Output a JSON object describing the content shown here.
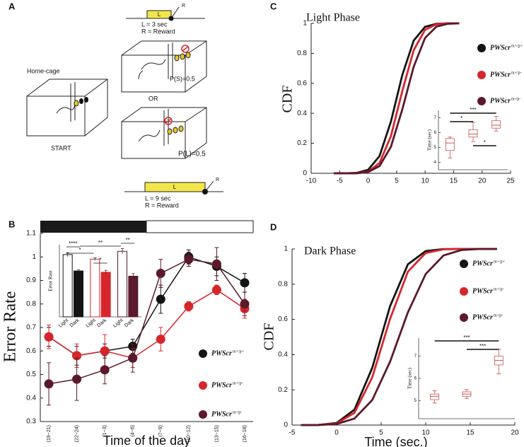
{
  "diagram": {
    "label": "A",
    "short_bar_label": "L",
    "short_bar_r": "R",
    "short_note_1": "L = 3 sec",
    "short_note_2": "R = Reward",
    "home_cage": "Home-cage",
    "start": "START",
    "p_short": "P(S)=0.5",
    "or": "OR",
    "p_long": "P(L)=0.5",
    "long_bar_label": "L",
    "long_bar_r": "R",
    "long_note_1": "L = 9 sec",
    "long_note_2": "R = Reward"
  },
  "chart_data": [
    {
      "panel": "B",
      "type": "line",
      "y_label": "Error Rate",
      "x_label": "Time of the day",
      "categories": [
        "(19~21)",
        "(22~24)",
        "(1~3)",
        "(4~6)",
        "(7~9)",
        "(10~12)",
        "(13~15)",
        "(16~18)"
      ],
      "ylim": [
        0.3,
        1.1
      ],
      "yticks": [
        0.3,
        0.4,
        0.5,
        0.6,
        0.7,
        0.8,
        0.9,
        1.0,
        1.1
      ],
      "series": [
        {
          "name": "PWScr",
          "sup": "m+/p+",
          "color": "#141414",
          "values": [
            0.66,
            0.58,
            0.6,
            0.62,
            0.82,
            1.0,
            0.96,
            0.89
          ],
          "errors": [
            0.04,
            0.04,
            0.03,
            0.03,
            0.06,
            0.03,
            0.04,
            0.04
          ]
        },
        {
          "name": "PWScr",
          "sup": "m+/p-",
          "color": "#d7262b",
          "values": [
            0.66,
            0.58,
            0.6,
            0.57,
            0.65,
            0.79,
            0.86,
            0.78
          ],
          "errors": [
            0.05,
            0.05,
            0.07,
            0.04,
            0.05,
            0.02,
            0.02,
            0.04
          ]
        },
        {
          "name": "PWScr",
          "sup": "m-/p-",
          "color": "#5a1a2c",
          "values": [
            0.46,
            0.48,
            0.52,
            0.57,
            0.93,
            0.99,
            0.97,
            0.8
          ],
          "errors": [
            0.09,
            0.09,
            0.06,
            0.06,
            0.06,
            0.03,
            0.07,
            0.05
          ]
        }
      ],
      "inset": {
        "type": "bar",
        "y_label": "Error Rate",
        "ylim": [
          0,
          1.1
        ],
        "categories": [
          "Light",
          "Dark",
          "Light",
          "Dark",
          "Light",
          "Dark"
        ],
        "values": [
          0.95,
          0.7,
          0.88,
          0.68,
          1.0,
          0.62
        ],
        "errors": [
          0.03,
          0.02,
          0.02,
          0.03,
          0.04,
          0.04
        ],
        "colors": [
          "#141414",
          "#141414",
          "#d7262b",
          "#d7262b",
          "#5a1a2c",
          "#5a1a2c"
        ],
        "annotations": [
          "****",
          "*",
          "*",
          "**",
          "**"
        ]
      }
    },
    {
      "panel": "C",
      "type": "line",
      "title": "Light Phase",
      "y_label": "CDF",
      "xlim": [
        -10,
        25
      ],
      "xticks": [
        -10,
        -5,
        0,
        5,
        10,
        15,
        20,
        25
      ],
      "ylim": [
        0,
        1
      ],
      "yticks": [
        0,
        0.2,
        0.4,
        0.6,
        0.8,
        1
      ],
      "x": [
        -6,
        -4,
        -2,
        0,
        2,
        4,
        6,
        8,
        10,
        12,
        14,
        16
      ],
      "series": [
        {
          "name": "PWScr",
          "sup": "m+/p+",
          "color": "#141414",
          "values": [
            0,
            0,
            0.003,
            0.023,
            0.115,
            0.345,
            0.655,
            0.885,
            0.977,
            0.997,
            1,
            1
          ]
        },
        {
          "name": "PWScr",
          "sup": "m+/p-",
          "color": "#d7262b",
          "values": [
            0,
            0,
            0.001,
            0.011,
            0.069,
            0.248,
            0.548,
            0.821,
            0.957,
            0.994,
            1,
            1
          ]
        },
        {
          "name": "PWScr",
          "sup": "m-/p-",
          "color": "#5a1a2c",
          "values": [
            0,
            0,
            0,
            0.008,
            0.048,
            0.177,
            0.426,
            0.711,
            0.903,
            0.979,
            0.997,
            1
          ]
        }
      ],
      "inset": {
        "type": "box",
        "y_label": "Time (sec)",
        "ylim": [
          3.5,
          7.5
        ],
        "yticks": [
          4,
          5,
          6,
          7
        ],
        "boxes": [
          {
            "min": 4.3,
            "q1": 4.8,
            "median": 5.3,
            "q3": 5.6,
            "max": 5.7
          },
          {
            "min": 5.4,
            "q1": 5.7,
            "median": 5.9,
            "q3": 6.2,
            "max": 6.7
          },
          {
            "min": 6.1,
            "q1": 6.3,
            "median": 6.5,
            "q3": 6.8,
            "max": 7.1
          }
        ],
        "color": "#c7544f",
        "annotations": [
          "***",
          "*",
          "*"
        ]
      }
    },
    {
      "panel": "D",
      "type": "line",
      "title": "Dark Phase",
      "y_label": "CDF",
      "x_label": "Time (sec.)",
      "xlim": [
        -5,
        20
      ],
      "xticks": [
        -5,
        0,
        5,
        10,
        15,
        20
      ],
      "ylim": [
        0,
        1
      ],
      "yticks": [
        0,
        0.2,
        0.4,
        0.6,
        0.8,
        1
      ],
      "x": [
        -4,
        -2,
        0,
        2,
        4,
        6,
        8,
        10,
        12,
        14,
        16,
        18
      ],
      "series": [
        {
          "name": "PWScr",
          "sup": "m+/p+",
          "color": "#141414",
          "values": [
            0,
            0.001,
            0.012,
            0.087,
            0.325,
            0.675,
            0.913,
            0.988,
            0.999,
            1,
            1,
            1
          ]
        },
        {
          "name": "PWScr",
          "sup": "m+/p-",
          "color": "#d7262b",
          "values": [
            0,
            0.001,
            0.009,
            0.069,
            0.271,
            0.603,
            0.871,
            0.977,
            0.998,
            1,
            1,
            1
          ]
        },
        {
          "name": "PWScr",
          "sup": "m-/p-",
          "color": "#5a1a2c",
          "values": [
            0,
            0.001,
            0.006,
            0.037,
            0.142,
            0.36,
            0.64,
            0.858,
            0.963,
            0.994,
            1,
            1
          ]
        }
      ],
      "inset": {
        "type": "box",
        "y_label": "Time (sec)",
        "ylim": [
          4.2,
          7.8
        ],
        "yticks": [
          5,
          6,
          7
        ],
        "boxes": [
          {
            "min": 4.9,
            "q1": 5.05,
            "median": 5.2,
            "q3": 5.3,
            "max": 5.45
          },
          {
            "min": 5.1,
            "q1": 5.2,
            "median": 5.3,
            "q3": 5.4,
            "max": 5.5
          },
          {
            "min": 6.2,
            "q1": 6.6,
            "median": 6.8,
            "q3": 7.0,
            "max": 7.3
          }
        ],
        "color": "#c7544f",
        "annotations": [
          "***",
          "***"
        ]
      }
    }
  ]
}
